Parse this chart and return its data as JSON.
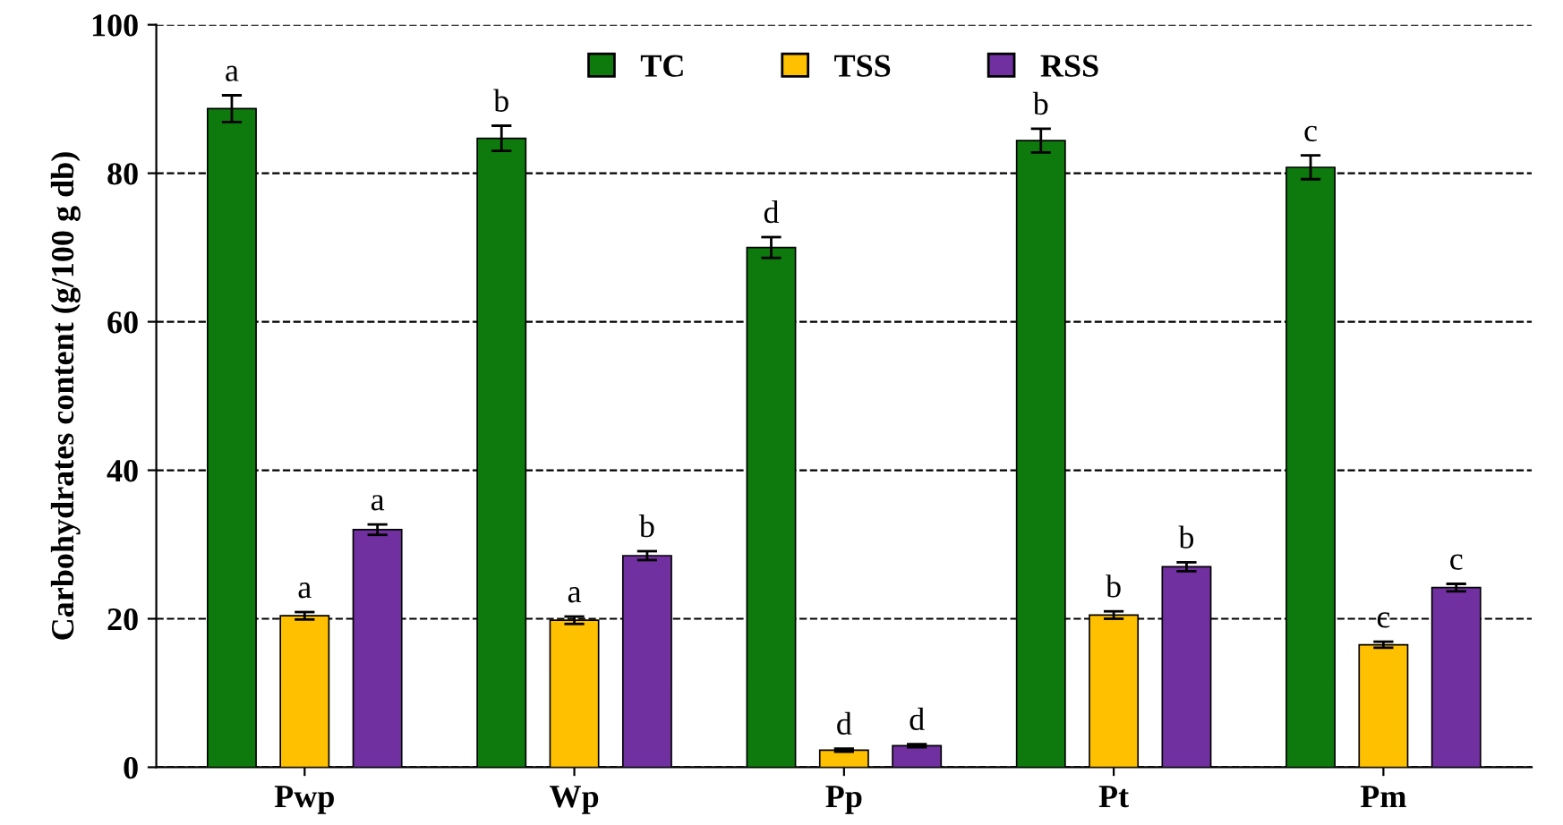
{
  "chart_data": {
    "type": "bar",
    "ylabel": "Carbohydrates content (g/100 g db)",
    "categories": [
      "Pwp",
      "Wp",
      "Pp",
      "Pt",
      "Pm"
    ],
    "series": [
      {
        "name": "TC",
        "color": "#0e7a0d",
        "values": [
          88.7,
          84.7,
          70.0,
          84.4,
          80.8
        ],
        "errors": [
          1.8,
          1.7,
          1.4,
          1.6,
          1.6
        ],
        "value_labels": [
          "a",
          "b",
          "d",
          "b",
          "c"
        ]
      },
      {
        "name": "TSS",
        "color": "#ffc000",
        "values": [
          20.4,
          19.8,
          2.3,
          20.5,
          16.5
        ],
        "errors": [
          0.5,
          0.5,
          0.2,
          0.5,
          0.4
        ],
        "value_labels": [
          "a",
          "a",
          "d",
          "b",
          "c"
        ]
      },
      {
        "name": "RSS",
        "color": "#7030a0",
        "values": [
          32.0,
          28.5,
          2.9,
          27.0,
          24.2
        ],
        "errors": [
          0.7,
          0.6,
          0.2,
          0.6,
          0.5
        ],
        "value_labels": [
          "a",
          "b",
          "d",
          "b",
          "c"
        ]
      }
    ],
    "ylim": [
      0,
      100
    ],
    "yticks": [
      0,
      20,
      40,
      60,
      80,
      100
    ],
    "grid": "y",
    "legend": "top"
  }
}
